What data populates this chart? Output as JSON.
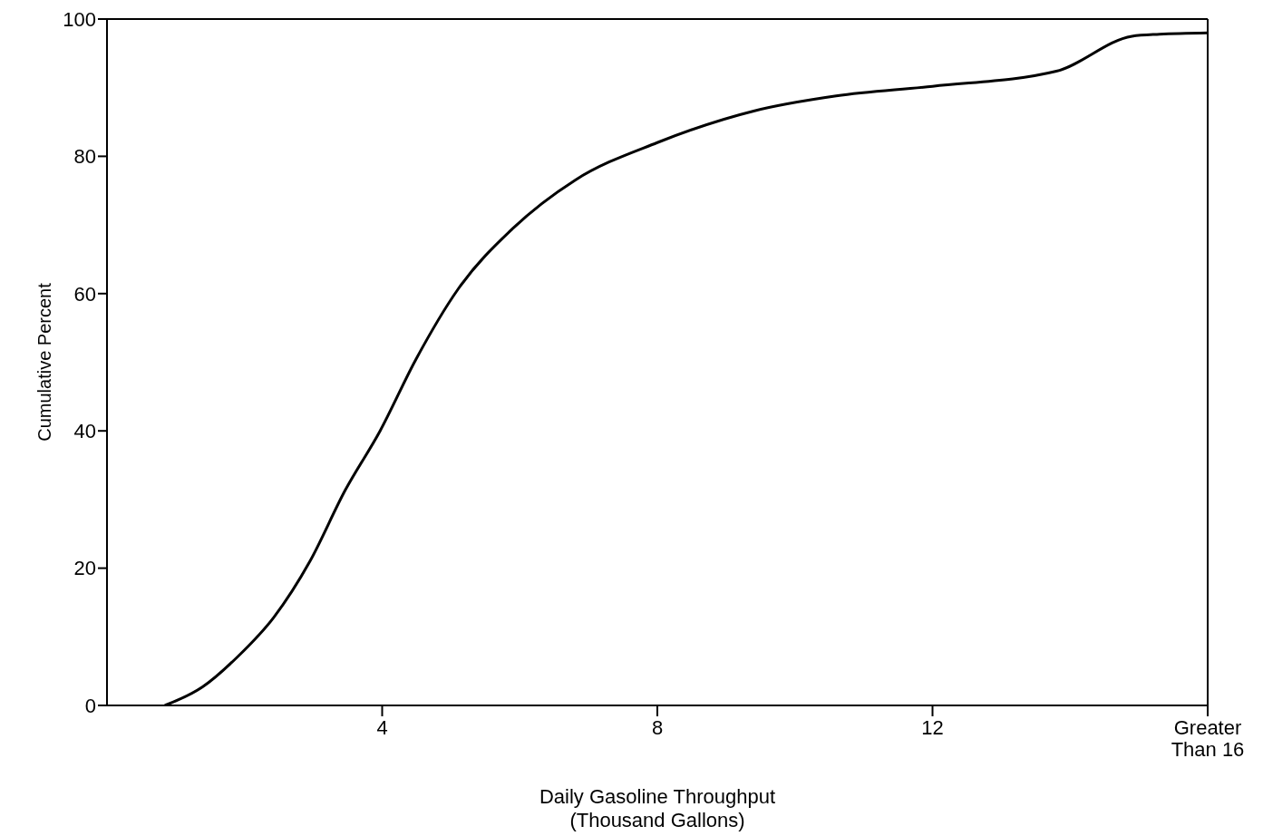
{
  "chart_data": {
    "type": "line",
    "xlabel": "Daily Gasoline Throughput\n(Thousand Gallons)",
    "ylabel": "Cumulative Percent",
    "x": [
      0.84,
      1.39,
      1.9,
      2.43,
      2.95,
      3.46,
      3.97,
      4.49,
      5.1,
      5.9,
      6.8,
      8.0,
      9.4,
      10.6,
      12.0,
      13.8,
      14.9,
      15.3,
      16.0
    ],
    "series": [
      {
        "color": "#000000",
        "values": [
          0,
          2.7,
          7.1,
          12.9,
          21,
          31.3,
          40,
          50.4,
          60.6,
          69.5,
          76.5,
          82,
          86.6,
          88.8,
          90.2,
          92.4,
          97.5,
          97.8,
          98
        ]
      }
    ],
    "xlim": [
      0,
      16
    ],
    "xticks": [
      4,
      8,
      12,
      {
        "value": 16,
        "label": "Greater\nThan 16"
      }
    ],
    "ylim": [
      0,
      100
    ],
    "yticks": [
      0,
      20,
      40,
      60,
      80,
      100
    ],
    "marker": "none",
    "line_style": "solid"
  }
}
